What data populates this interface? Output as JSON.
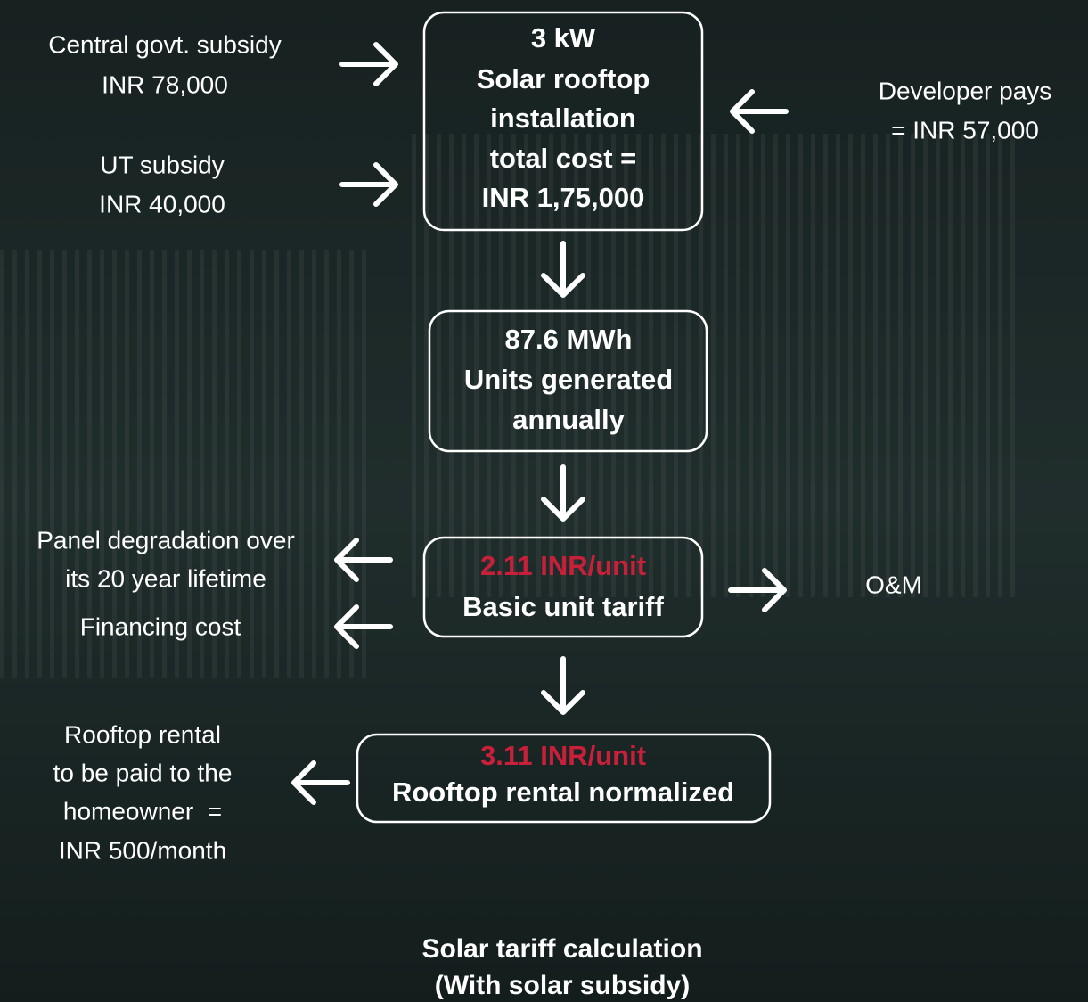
{
  "nodes": [
    {
      "lines": [
        "3 kW",
        "Solar rooftop",
        "installation",
        "total cost =",
        "INR 1,75,000"
      ]
    },
    {
      "lines": [
        "87.6 MWh",
        "Units generated",
        "annually"
      ]
    },
    {
      "highlight": "2.11 INR/unit",
      "lines": [
        "Basic unit tariff"
      ]
    },
    {
      "highlight": "3.11 INR/unit",
      "lines": [
        "Rooftop rental normalized"
      ]
    }
  ],
  "labels": [
    {
      "lines": [
        "Central govt. subsidy",
        "INR 78,000"
      ]
    },
    {
      "lines": [
        "UT subsidy",
        "INR 40,000"
      ]
    },
    {
      "lines": [
        "Developer pays",
        "= INR 57,000"
      ]
    },
    {
      "lines": [
        "Panel degradation over",
        "its 20 year lifetime"
      ]
    },
    {
      "lines": [
        "Financing cost"
      ]
    },
    {
      "lines": [
        "O&M"
      ]
    },
    {
      "lines": [
        "Rooftop rental",
        "to be paid to the",
        "homeowner  =",
        "INR 500/month"
      ]
    }
  ],
  "caption": [
    "Solar tariff calculation",
    "(With solar subsidy)"
  ]
}
